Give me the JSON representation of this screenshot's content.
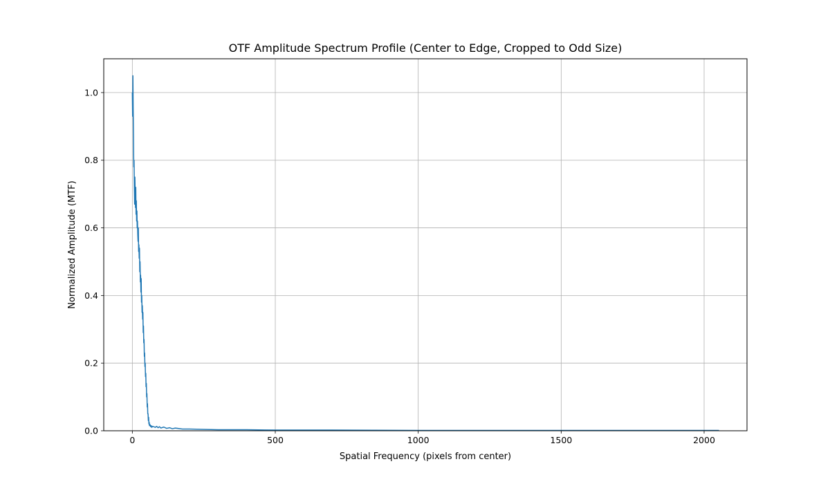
{
  "chart_data": {
    "type": "line",
    "title": "OTF Amplitude Spectrum Profile (Center to Edge, Cropped to Odd Size)",
    "xlabel": "Spatial Frequency (pixels from center)",
    "ylabel": "Normalized Amplitude (MTF)",
    "xlim": [
      -100,
      2150
    ],
    "ylim": [
      0,
      1.1
    ],
    "xticks": [
      0,
      500,
      1000,
      1500,
      2000
    ],
    "yticks": [
      0.0,
      0.2,
      0.4,
      0.6,
      0.8,
      1.0
    ],
    "xtick_labels": [
      "0",
      "500",
      "1000",
      "1500",
      "2000"
    ],
    "ytick_labels": [
      "0.0",
      "0.2",
      "0.4",
      "0.6",
      "0.8",
      "1.0"
    ],
    "grid": true,
    "series": [
      {
        "color": "#1f77b4",
        "x": [
          0,
          1,
          2,
          3,
          4,
          5,
          6,
          7,
          8,
          9,
          10,
          11,
          12,
          13,
          14,
          15,
          16,
          17,
          18,
          19,
          20,
          21,
          22,
          23,
          24,
          25,
          26,
          27,
          28,
          29,
          30,
          31,
          32,
          33,
          34,
          35,
          36,
          37,
          38,
          39,
          40,
          41,
          42,
          43,
          44,
          45,
          46,
          47,
          48,
          49,
          50,
          51,
          52,
          53,
          54,
          55,
          56,
          57,
          58,
          59,
          60,
          62,
          64,
          66,
          68,
          70,
          75,
          80,
          85,
          90,
          95,
          100,
          110,
          120,
          130,
          140,
          150,
          175,
          200,
          250,
          300,
          400,
          500,
          700,
          1000,
          1300,
          1600,
          2052
        ],
        "y": [
          1.0,
          0.93,
          1.05,
          0.95,
          0.88,
          0.78,
          0.8,
          0.72,
          0.67,
          0.75,
          0.7,
          0.66,
          0.72,
          0.64,
          0.68,
          0.62,
          0.65,
          0.6,
          0.62,
          0.58,
          0.56,
          0.6,
          0.53,
          0.55,
          0.51,
          0.54,
          0.47,
          0.5,
          0.44,
          0.46,
          0.41,
          0.45,
          0.38,
          0.4,
          0.35,
          0.37,
          0.33,
          0.35,
          0.29,
          0.31,
          0.26,
          0.27,
          0.22,
          0.23,
          0.19,
          0.2,
          0.16,
          0.17,
          0.13,
          0.14,
          0.1,
          0.11,
          0.07,
          0.08,
          0.05,
          0.05,
          0.03,
          0.04,
          0.02,
          0.025,
          0.015,
          0.018,
          0.012,
          0.015,
          0.01,
          0.013,
          0.012,
          0.01,
          0.013,
          0.009,
          0.012,
          0.008,
          0.011,
          0.007,
          0.009,
          0.006,
          0.008,
          0.005,
          0.005,
          0.004,
          0.003,
          0.003,
          0.002,
          0.002,
          0.001,
          0.001,
          0.001,
          0.001
        ]
      }
    ]
  }
}
